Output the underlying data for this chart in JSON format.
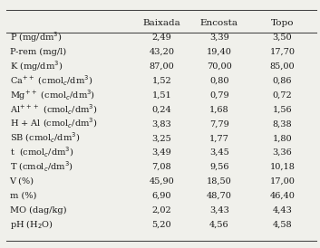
{
  "col_headers": [
    "Baixada",
    "Encosta",
    "Topo"
  ],
  "values": [
    [
      "2,49",
      "3,39",
      "3,50"
    ],
    [
      "43,20",
      "19,40",
      "17,70"
    ],
    [
      "87,00",
      "70,00",
      "85,00"
    ],
    [
      "1,52",
      "0,80",
      "0,86"
    ],
    [
      "1,51",
      "0,79",
      "0,72"
    ],
    [
      "0,24",
      "1,68",
      "1,56"
    ],
    [
      "3,83",
      "7,79",
      "8,38"
    ],
    [
      "3,25",
      "1,77",
      "1,80"
    ],
    [
      "3,49",
      "3,45",
      "3,36"
    ],
    [
      "7,08",
      "9,56",
      "10,18"
    ],
    [
      "45,90",
      "18,50",
      "17,00"
    ],
    [
      "6,90",
      "48,70",
      "46,40"
    ],
    [
      "2,02",
      "3,43",
      "4,43"
    ],
    [
      "5,20",
      "4,56",
      "4,58"
    ]
  ],
  "bg_color": "#f0f0eb",
  "text_color": "#1a1a1a",
  "line_color": "#444444",
  "header_fontsize": 7.5,
  "cell_fontsize": 7.0,
  "label_fontsize": 7.0
}
